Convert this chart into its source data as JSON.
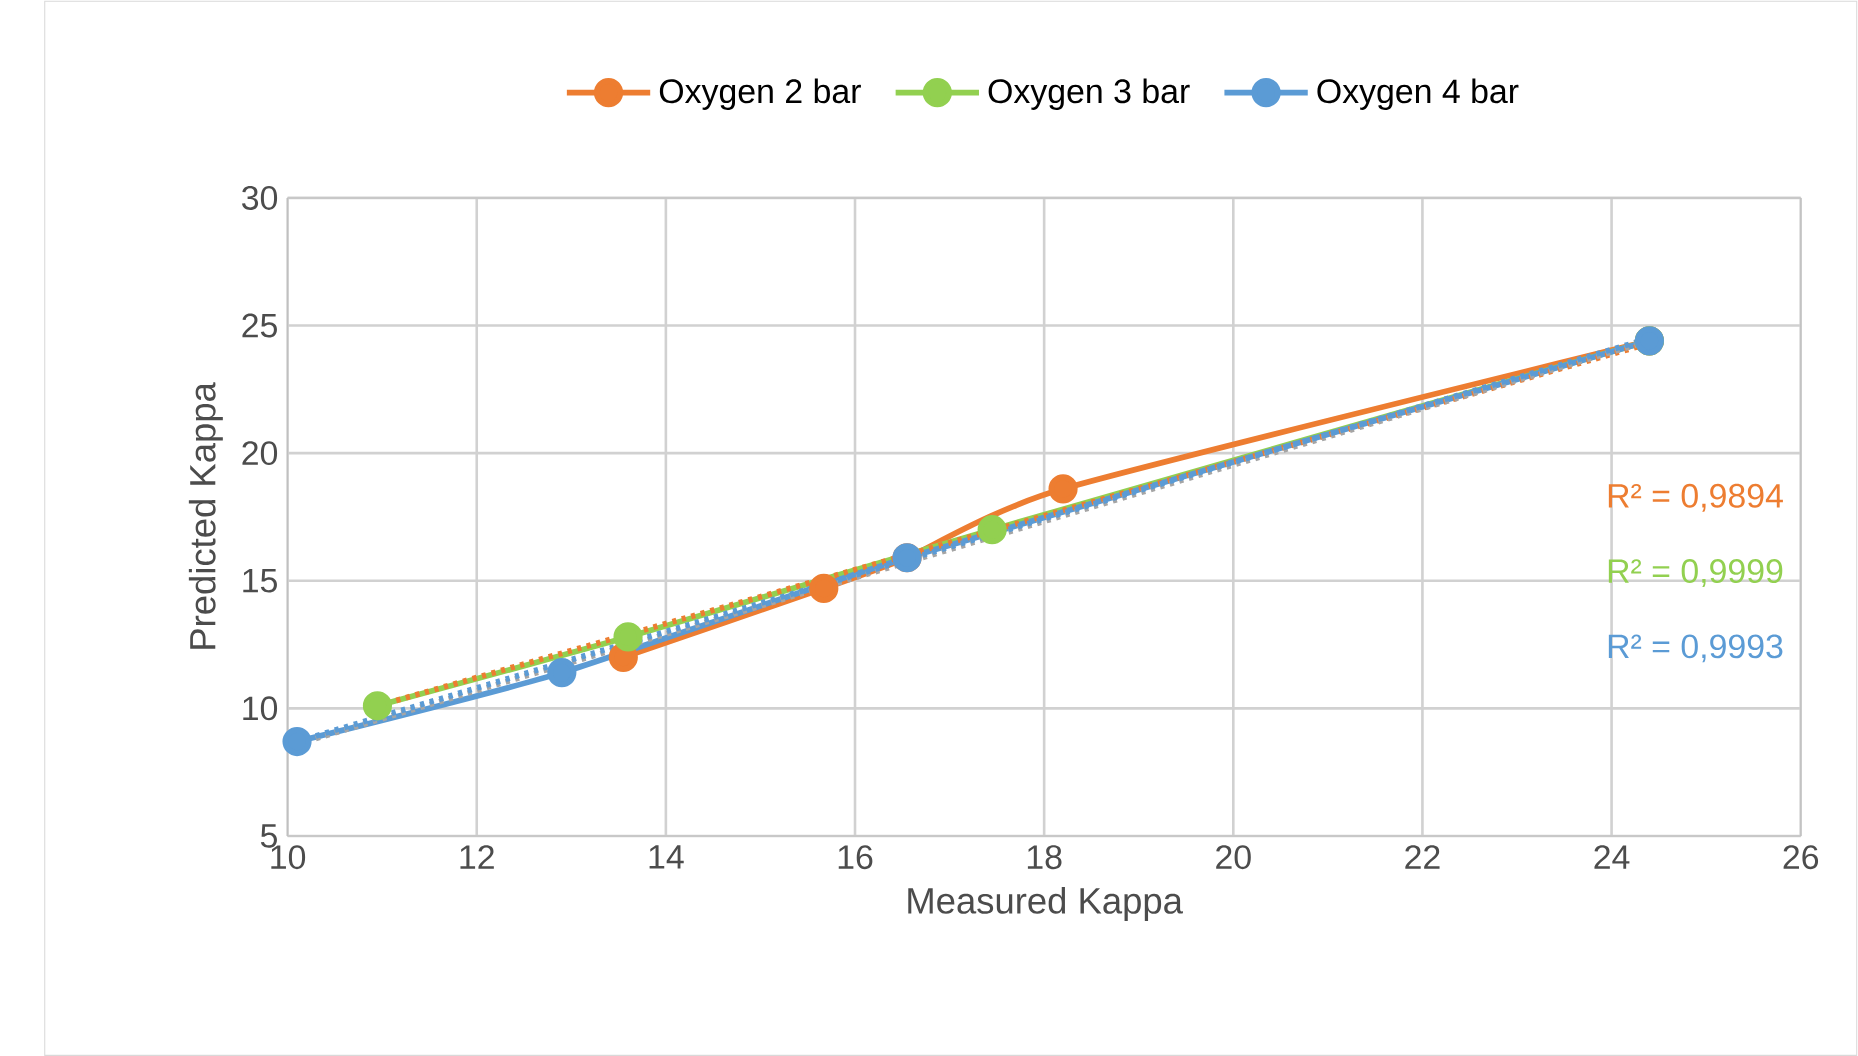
{
  "chart_data": {
    "type": "line",
    "xlabel": "Measured Kappa",
    "ylabel": "Predicted Kappa",
    "xlim": [
      10,
      26
    ],
    "xticks": [
      10,
      12,
      14,
      16,
      18,
      20,
      22,
      24,
      26
    ],
    "ylim": [
      5,
      30
    ],
    "yticks": [
      5,
      10,
      15,
      20,
      25,
      30
    ],
    "grid": true,
    "legend": "top",
    "marker": "circle",
    "series": [
      {
        "name": "Oxygen 2 bar",
        "color": "#ed7d31",
        "x": [
          13.55,
          15.67,
          16.55,
          18.2,
          24.4
        ],
        "values": [
          12.0,
          14.7,
          15.9,
          18.6,
          24.4
        ]
      },
      {
        "name": "Oxygen 3 bar",
        "color": "#92d050",
        "x": [
          10.95,
          13.6,
          17.45,
          24.4
        ],
        "values": [
          10.1,
          12.8,
          17.0,
          24.4
        ]
      },
      {
        "name": "Oxygen 4 bar",
        "color": "#5b9bd5",
        "x": [
          10.1,
          12.9,
          16.55,
          24.4
        ],
        "values": [
          8.7,
          11.4,
          15.9,
          24.4
        ]
      },
      {
        "type": "line",
        "color": "#ed7d31",
        "line_style": "dotted",
        "marker": "none",
        "x": [
          10.95,
          24.4
        ],
        "values": [
          10.1,
          24.3
        ]
      },
      {
        "type": "line",
        "color": "#a5a5a5",
        "line_style": "dotted",
        "marker": "none",
        "x": [
          10.1,
          24.4
        ],
        "values": [
          8.6,
          24.4
        ]
      },
      {
        "type": "line",
        "color": "#5b9bd5",
        "line_style": "dotted",
        "marker": "none",
        "x": [
          10.1,
          24.4
        ],
        "values": [
          8.7,
          24.5
        ]
      }
    ],
    "annotations": [
      "R² = 0,9894",
      "R² = 0,9999",
      "R² = 0,9993"
    ]
  }
}
